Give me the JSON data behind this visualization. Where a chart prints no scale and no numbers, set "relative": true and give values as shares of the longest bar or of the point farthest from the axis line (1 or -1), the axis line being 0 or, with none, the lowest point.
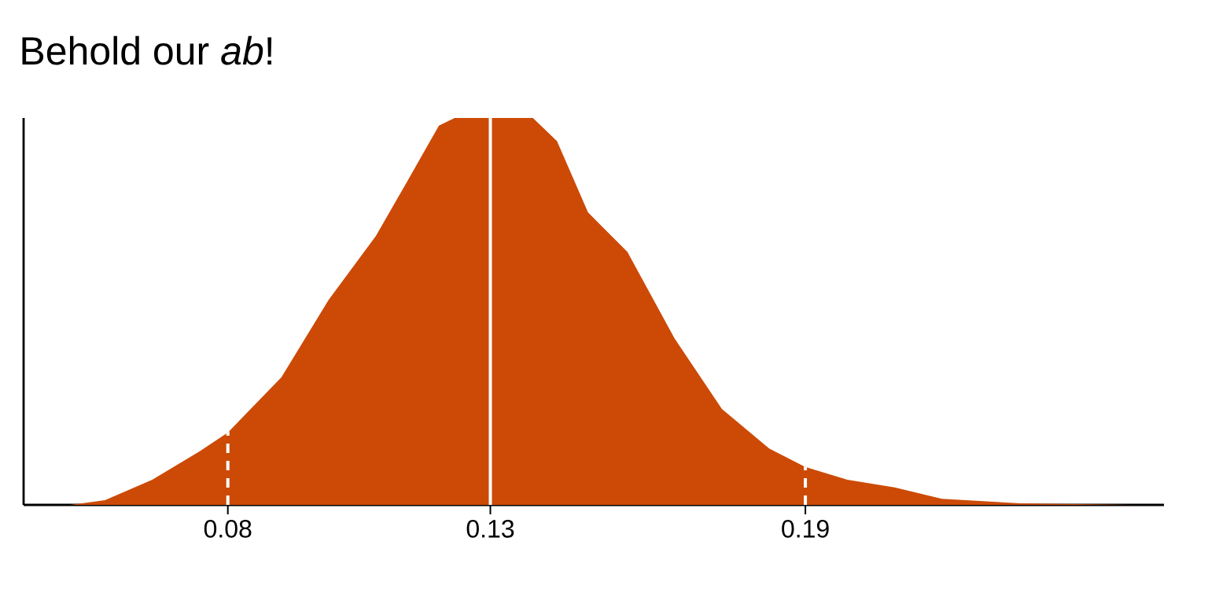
{
  "chart_data": {
    "type": "area",
    "title": "Behold our *ab*!",
    "relative": true,
    "color": "#cc4a06",
    "x": [
      0.05,
      0.0566,
      0.0656,
      0.0746,
      0.08,
      0.0902,
      0.0992,
      0.1082,
      0.1142,
      0.1202,
      0.1232,
      0.1381,
      0.1427,
      0.1486,
      0.1561,
      0.1651,
      0.1741,
      0.1831,
      0.19,
      0.198,
      0.207,
      0.216,
      0.231,
      0.252
    ],
    "values": [
      0,
      0.012,
      0.065,
      0.138,
      0.187,
      0.33,
      0.53,
      0.695,
      0.837,
      0.98,
      1,
      1,
      0.94,
      0.756,
      0.654,
      0.43,
      0.248,
      0.146,
      0.098,
      0.065,
      0.045,
      0.016,
      0.004,
      0
    ],
    "xlim": [
      0.0411,
      0.2583
    ],
    "xticks": [
      0.08,
      0.13,
      0.19
    ],
    "ref_lines": [
      {
        "axis": "x",
        "value": 0.08,
        "color": "#ffffff",
        "line_style": "dashed"
      },
      {
        "axis": "x",
        "value": 0.13,
        "color": "#ffffff",
        "line_style": "solid"
      },
      {
        "axis": "x",
        "value": 0.19,
        "color": "#ffffff",
        "line_style": "dashed"
      }
    ]
  }
}
